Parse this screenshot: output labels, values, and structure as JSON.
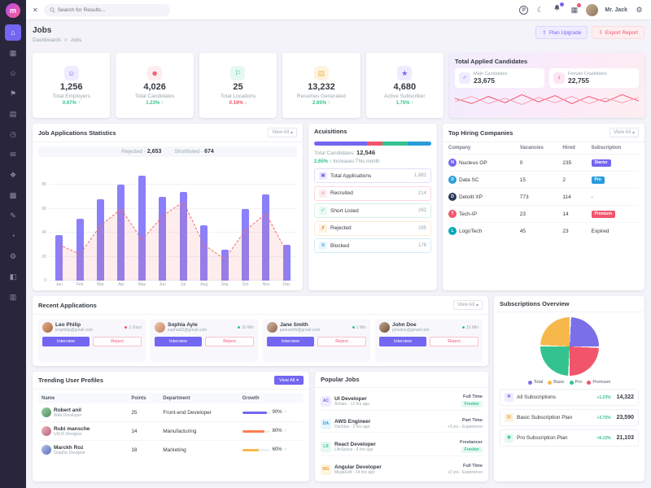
{
  "colors": {
    "primary": "#7366f0",
    "danger": "#f1556c",
    "success": "#34c38f",
    "warning": "#f7b84b",
    "info": "#299cdb"
  },
  "ui": {
    "caret": "▾",
    "menu_glyph": "✕",
    "language_glyph": "P",
    "moon_glyph": "☾",
    "gear_glyph": "⚙",
    "apps_glyph": "▦",
    "upgrade_glyph": "⇧",
    "export_glyph": "⇩",
    "male_glyph": "♂",
    "female_glyph": "♀"
  },
  "sidebar": {
    "logo": "m",
    "items": [
      {
        "name": "home",
        "glyph": "⌂",
        "active": true
      },
      {
        "name": "widgets",
        "glyph": "▦",
        "active": false
      },
      {
        "name": "users",
        "glyph": "☺",
        "active": false
      },
      {
        "name": "jobs",
        "glyph": "⚑",
        "active": false
      },
      {
        "name": "documents",
        "glyph": "▤",
        "active": false
      },
      {
        "name": "calendar",
        "glyph": "◷",
        "active": false
      },
      {
        "name": "mail",
        "glyph": "✉",
        "active": false
      },
      {
        "name": "components",
        "glyph": "❖",
        "active": false
      },
      {
        "name": "tables",
        "glyph": "▩",
        "active": false
      },
      {
        "name": "forms",
        "glyph": "✎",
        "active": false
      },
      {
        "name": "charts",
        "glyph": "◔",
        "active": false
      },
      {
        "name": "settings",
        "glyph": "⚙",
        "active": false
      },
      {
        "name": "auth",
        "glyph": "◧",
        "active": false
      },
      {
        "name": "pages",
        "glyph": "▥",
        "active": false
      }
    ]
  },
  "topbar": {
    "search_placeholder": "Search for Results...",
    "user_name": "Mr. Jack"
  },
  "page": {
    "title": "Jobs",
    "breadcrumb_root": "Dashboards",
    "breadcrumb_sep": ">",
    "breadcrumb_current": "Jobs",
    "plan_upgrade_label": "Plan Upgrade",
    "export_report_label": "Export Report"
  },
  "stats": [
    {
      "value": "1,256",
      "label": "Total Employers",
      "delta": "0.67% ↑"
    },
    {
      "value": "4,026",
      "label": "Total Candidates",
      "delta": "1.23% ↑"
    },
    {
      "value": "25",
      "label": "Total Locations",
      "delta": "0.19% ↓"
    },
    {
      "value": "13,232",
      "label": "Resumes Generated",
      "delta": "2.65% ↑"
    },
    {
      "value": "4,680",
      "label": "Active Subscriber",
      "delta": "1.75% ↑"
    }
  ],
  "applied": {
    "title": "Total Applied Candidates",
    "male_label": "Male Candidates",
    "male_value": "23,675",
    "female_label": "Female Cnadidates",
    "female_value": "22,755"
  },
  "job_stats": {
    "title": "Job Applications Statistics",
    "view_all": "View All",
    "legend_rejected_label": "Rejected -",
    "legend_rejected_value": "2,653",
    "legend_shortlisted_label": "Shortlisted -",
    "legend_shortlisted_value": "674"
  },
  "acquisitions": {
    "title": "Acuisitions",
    "total_label": "Total Candidates:",
    "total_value": "12,546",
    "delta": "2.65% ↑",
    "delta_note": "Increases This month",
    "items": [
      {
        "label": "Total Applications",
        "value": "1,982",
        "glyph": "▣"
      },
      {
        "label": "Recruited",
        "value": "214",
        "glyph": "☺"
      },
      {
        "label": "Short Listed",
        "value": "262",
        "glyph": "✓"
      },
      {
        "label": "Rejected",
        "value": "295",
        "glyph": "✗"
      },
      {
        "label": "Blocked",
        "value": "178",
        "glyph": "⊘"
      }
    ]
  },
  "top_hiring": {
    "title": "Top Hiring Companies",
    "view_all": "View All",
    "columns": [
      "Company",
      "Vacancies",
      "Hired",
      "Subscription"
    ],
    "rows": [
      {
        "company": "Nucleus OP",
        "initial": "N",
        "vacancies": "0",
        "hired": "235",
        "subscription": "Starter"
      },
      {
        "company": "Data SC",
        "initial": "D",
        "vacancies": "15",
        "hired": "2",
        "subscription": "Pro"
      },
      {
        "company": "Deloitt XP",
        "initial": "D",
        "vacancies": "773",
        "hired": "114",
        "subscription": "-"
      },
      {
        "company": "Tech-IP",
        "initial": "T",
        "vacancies": "23",
        "hired": "14",
        "subscription": "Premium"
      },
      {
        "company": "LogoTech",
        "initial": "L",
        "vacancies": "45",
        "hired": "23",
        "subscription": "Expired"
      }
    ]
  },
  "recent": {
    "title": "Recent Applications",
    "view_all": "View All",
    "interview_label": "Interview",
    "reject_label": "Reject",
    "items": [
      {
        "name": "Leo Philip",
        "email": "leophilip@gmail.com",
        "time": "2 Days"
      },
      {
        "name": "Sophia Ayle",
        "email": "sophia02@gmail.com",
        "time": "20 Min"
      },
      {
        "name": "Jane Smith",
        "email": "janesmith@gmail.com",
        "time": "1 Min"
      },
      {
        "name": "John Doe",
        "email": "johndoe@gmail.com",
        "time": "16 Min"
      }
    ]
  },
  "trending": {
    "title": "Trending User Profiles",
    "view_all": "View All",
    "columns": [
      "Name",
      "Points",
      "Department",
      "Growth"
    ],
    "rows": [
      {
        "name": "Robert anil",
        "role": "Web Developer",
        "points": "25",
        "department": "Front-end Developer",
        "growth": "90%",
        "growth_pct": 90,
        "arrow": "↑"
      },
      {
        "name": "Rubi mansche",
        "role": "UI/UX Designer",
        "points": "14",
        "department": "Manufacturing",
        "growth": "80%",
        "growth_pct": 80,
        "arrow": "↑"
      },
      {
        "name": "Marckh Roz",
        "role": "Graphic Designer",
        "points": "18",
        "department": "Marketing",
        "growth": "60%",
        "growth_pct": 60,
        "arrow": "↑"
      }
    ]
  },
  "popular": {
    "title": "Popular Jobs",
    "items": [
      {
        "initials": "AC",
        "title": "UI Developer",
        "meta": "Achais - 12 hrs ago",
        "type": "Full Time",
        "tag": "Fresher"
      },
      {
        "initials": "DA",
        "title": "AWS Engineer",
        "meta": "Dachlas - 2 hrs ago",
        "type": "Part Time",
        "tag": "+3 yrs - Experience"
      },
      {
        "initials": "LS",
        "title": "React Developer",
        "meta": "LifeSpace - 6 hrs ago",
        "type": "Freelancer",
        "tag": "Fresher"
      },
      {
        "initials": "MG",
        "title": "Angular Developer",
        "meta": "MegaSoft - 14 hrs ago",
        "type": "Full Time",
        "tag": "+2 yrs - Experience"
      }
    ]
  },
  "subscriptions": {
    "title": "Subscriptions Overview",
    "legend": [
      {
        "label": "Total",
        "color": "#7a6fe6"
      },
      {
        "label": "Basic",
        "color": "#f7b84b"
      },
      {
        "label": "Pro",
        "color": "#34c38f"
      },
      {
        "label": "Premium",
        "color": "#f1556c"
      }
    ],
    "items": [
      {
        "label": "All Subscriptions",
        "delta": "+1.23%",
        "value": "14,322",
        "glyph": "❖"
      },
      {
        "label": "Basic Subscription Plan",
        "delta": "+3.75%",
        "value": "23,590",
        "glyph": "▤"
      },
      {
        "label": "Pro Subscription Plan",
        "delta": "+6.12%",
        "value": "21,103",
        "glyph": "◉"
      }
    ]
  },
  "chart_data": [
    {
      "id": "job_applications",
      "type": "bar",
      "title": "Job Applications Statistics",
      "categories": [
        "Jan",
        "Feb",
        "Mar",
        "Apr",
        "May",
        "Jun",
        "Jul",
        "Aug",
        "Sep",
        "Oct",
        "Nov",
        "Dec"
      ],
      "series": [
        {
          "name": "Applications",
          "type": "bar",
          "color": "#8b80f9",
          "values": [
            38,
            52,
            68,
            80,
            88,
            70,
            74,
            46,
            26,
            60,
            72,
            30
          ]
        },
        {
          "name": "Rejected Trend",
          "type": "line",
          "color": "#f46a6a",
          "fill": "rgba(244,106,106,0.12)",
          "values": [
            30,
            22,
            46,
            60,
            34,
            54,
            66,
            30,
            18,
            42,
            56,
            24
          ]
        }
      ],
      "xlabel": "",
      "ylabel": "",
      "ylim": [
        0,
        100
      ],
      "yticks": [
        0,
        20,
        40,
        60,
        80
      ],
      "grid": true,
      "legend_position": "top"
    },
    {
      "id": "acquisitions_progress",
      "type": "bar",
      "title": "Acuisitions total split",
      "total": 12546,
      "segments": [
        {
          "label": "Total Applications",
          "color": "#7366f0",
          "pct": 45
        },
        {
          "label": "Recruited",
          "color": "#f1556c",
          "pct": 13
        },
        {
          "label": "Short Listed",
          "color": "#34c38f",
          "pct": 22
        },
        {
          "label": "Blocked",
          "color": "#299cdb",
          "pct": 20
        }
      ]
    },
    {
      "id": "subscriptions_pie",
      "type": "pie",
      "title": "Subscriptions Overview",
      "labels": [
        "Total",
        "Premium",
        "Pro",
        "Basic"
      ],
      "values": [
        25,
        25,
        25,
        25
      ],
      "colors": [
        "#7a6fe6",
        "#f1556c",
        "#34c38f",
        "#f7b84b"
      ],
      "legend_position": "bottom"
    },
    {
      "id": "applied_trend",
      "type": "line",
      "title": "Total Applied Candidates trend",
      "series": [
        {
          "name": "Male",
          "color": "#f1556c",
          "values": [
            12,
            6,
            14,
            7,
            16,
            8,
            15,
            6,
            14,
            8,
            16,
            9
          ]
        },
        {
          "name": "Female",
          "color": "#f8a0b5",
          "values": [
            8,
            14,
            6,
            12,
            5,
            13,
            7,
            14,
            6,
            12,
            7,
            13
          ]
        }
      ],
      "ylim": [
        0,
        20
      ]
    }
  ]
}
